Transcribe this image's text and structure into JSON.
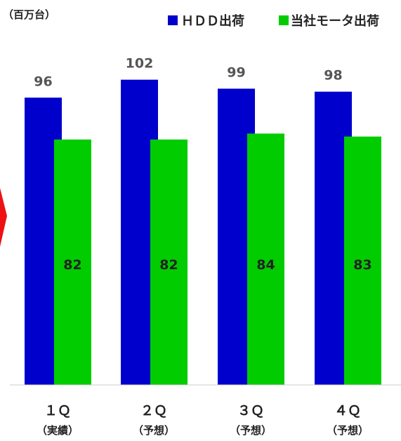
{
  "chart_data": {
    "type": "bar",
    "unit_label": "（百万台）",
    "categories": [
      "１Ｑ",
      "２Ｑ",
      "３Ｑ",
      "４Ｑ"
    ],
    "category_sublabels": [
      "（実績）",
      "（予想）",
      "（予想）",
      "（予想）"
    ],
    "series": [
      {
        "name": "ＨＤＤ出荷",
        "values": [
          96,
          102,
          99,
          98
        ],
        "color": "#0000cc",
        "label_color": "#555555"
      },
      {
        "name": "当社モータ出荷",
        "values": [
          82,
          82,
          84,
          83
        ],
        "color": "#00cc00",
        "label_color": "#222222"
      }
    ],
    "ylim": [
      0,
      104
    ],
    "legend_position": "top-right",
    "grid": false,
    "accent_color": "#ee1111"
  }
}
